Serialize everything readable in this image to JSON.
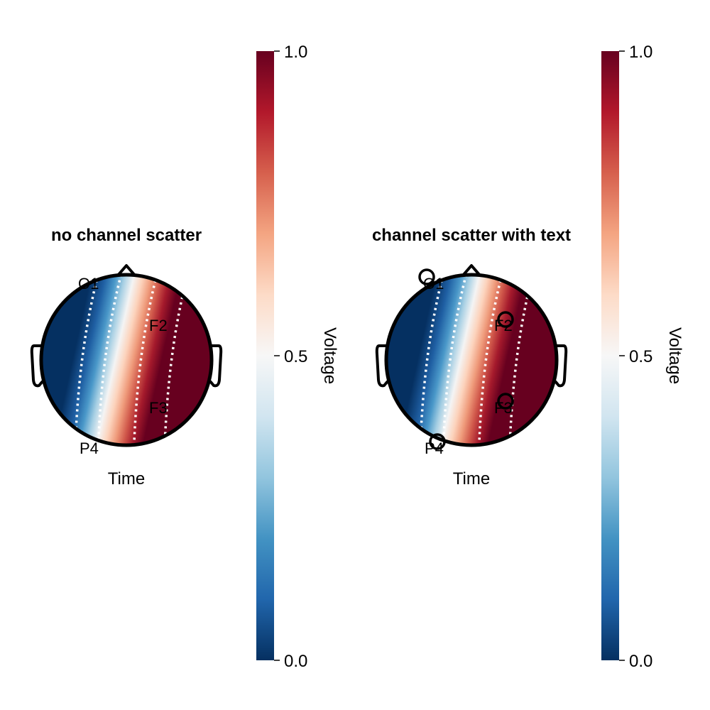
{
  "chart_data": [
    {
      "type": "heatmap",
      "title": "no channel scatter",
      "xlabel": "Time",
      "channels": [
        {
          "label": "O1",
          "show_marker": false
        },
        {
          "label": "F2",
          "show_marker": false
        },
        {
          "label": "F3",
          "show_marker": false
        },
        {
          "label": "P4",
          "show_marker": false
        }
      ],
      "colorbar": {
        "label": "Voltage",
        "range": [
          0.0,
          1.0
        ],
        "ticks": [
          "0.0",
          "0.5",
          "1.0"
        ],
        "colormap": "RdBu reversed (blue = 0, red = 1)"
      },
      "contour_levels": [
        0.2,
        0.4,
        0.6,
        0.8
      ],
      "grid": false
    },
    {
      "type": "heatmap",
      "title": "channel scatter with text",
      "xlabel": "Time",
      "channels": [
        {
          "label": "O1",
          "show_marker": true
        },
        {
          "label": "F2",
          "show_marker": true
        },
        {
          "label": "F3",
          "show_marker": true
        },
        {
          "label": "P4",
          "show_marker": true
        }
      ],
      "colorbar": {
        "label": "Voltage",
        "range": [
          0.0,
          1.0
        ],
        "ticks": [
          "0.0",
          "0.5",
          "1.0"
        ],
        "colormap": "RdBu reversed (blue = 0, red = 1)"
      },
      "contour_levels": [
        0.2,
        0.4,
        0.6,
        0.8
      ],
      "grid": false
    }
  ],
  "colors": {
    "low": "#053061",
    "mid": "#f7f7f7",
    "high": "#67001f",
    "outline": "#000000",
    "contour": "#ffffff"
  }
}
